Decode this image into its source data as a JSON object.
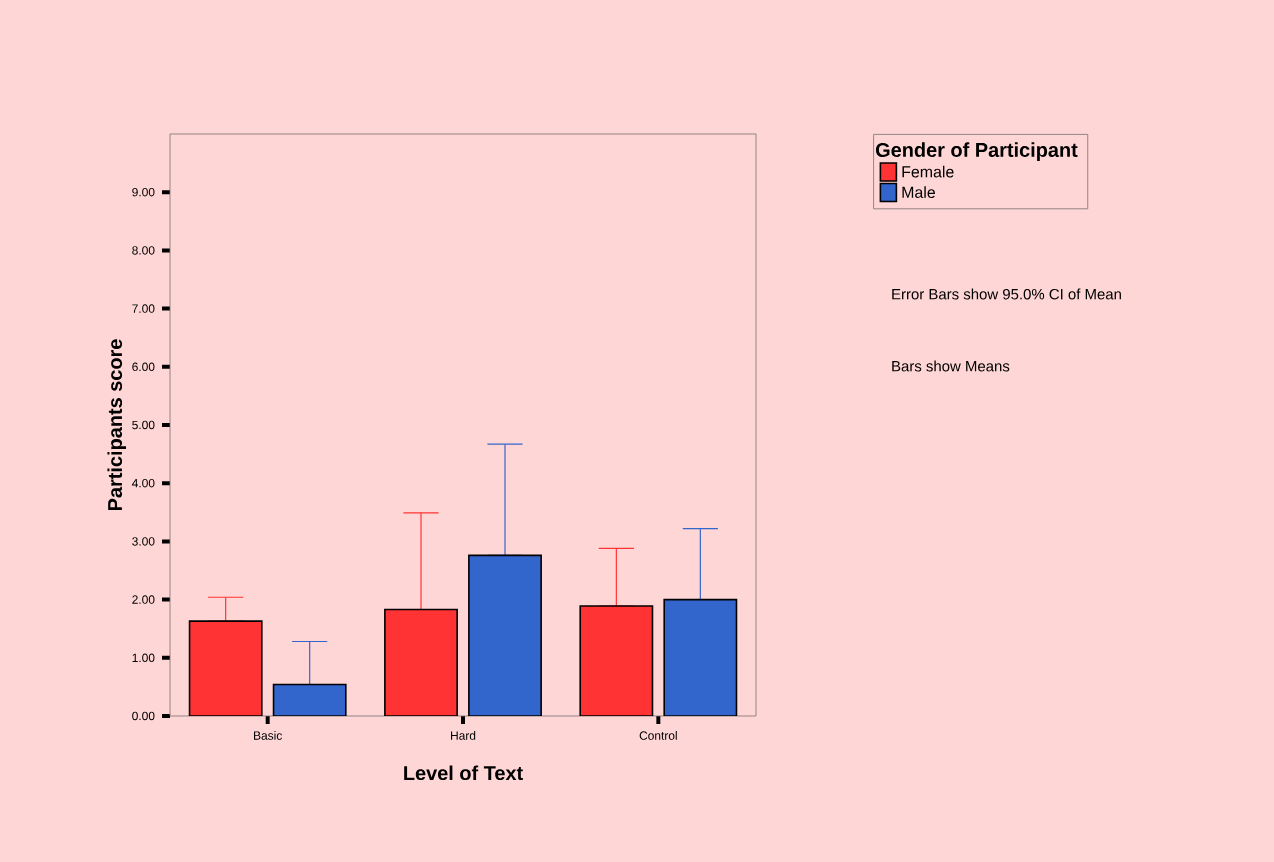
{
  "chart_data": {
    "type": "bar",
    "xlabel": "Level of Text",
    "ylabel": "Participants score",
    "legend_title": "Gender of Participant",
    "categories": [
      "Basic",
      "Hard",
      "Control"
    ],
    "series": [
      {
        "name": "Female",
        "color": "#ff3333",
        "values": [
          1.63,
          1.83,
          1.89
        ],
        "errors": [
          [
            1.63,
            2.04
          ],
          [
            1.83,
            3.49
          ],
          [
            1.89,
            2.88
          ]
        ]
      },
      {
        "name": "Male",
        "color": "#3366cc",
        "values": [
          0.54,
          2.76,
          2.0
        ],
        "errors": [
          [
            0.54,
            1.28
          ],
          [
            2.76,
            4.67
          ],
          [
            2.0,
            3.22
          ]
        ]
      }
    ],
    "ylim": [
      0,
      10
    ],
    "yticks": [
      {
        "value": 0,
        "label": "0.00"
      },
      {
        "value": 1,
        "label": "1.00"
      },
      {
        "value": 2,
        "label": "2.00"
      },
      {
        "value": 3,
        "label": "3.00"
      },
      {
        "value": 4,
        "label": "4.00"
      },
      {
        "value": 5,
        "label": "5.00"
      },
      {
        "value": 6,
        "label": "6.00"
      },
      {
        "value": 7,
        "label": "7.00"
      },
      {
        "value": 8,
        "label": "8.00"
      },
      {
        "value": 9,
        "label": "9.00"
      }
    ],
    "legend": "top right",
    "annotations": [
      "Error Bars show 95.0% CI of Mean",
      "Bars show Means"
    ]
  }
}
